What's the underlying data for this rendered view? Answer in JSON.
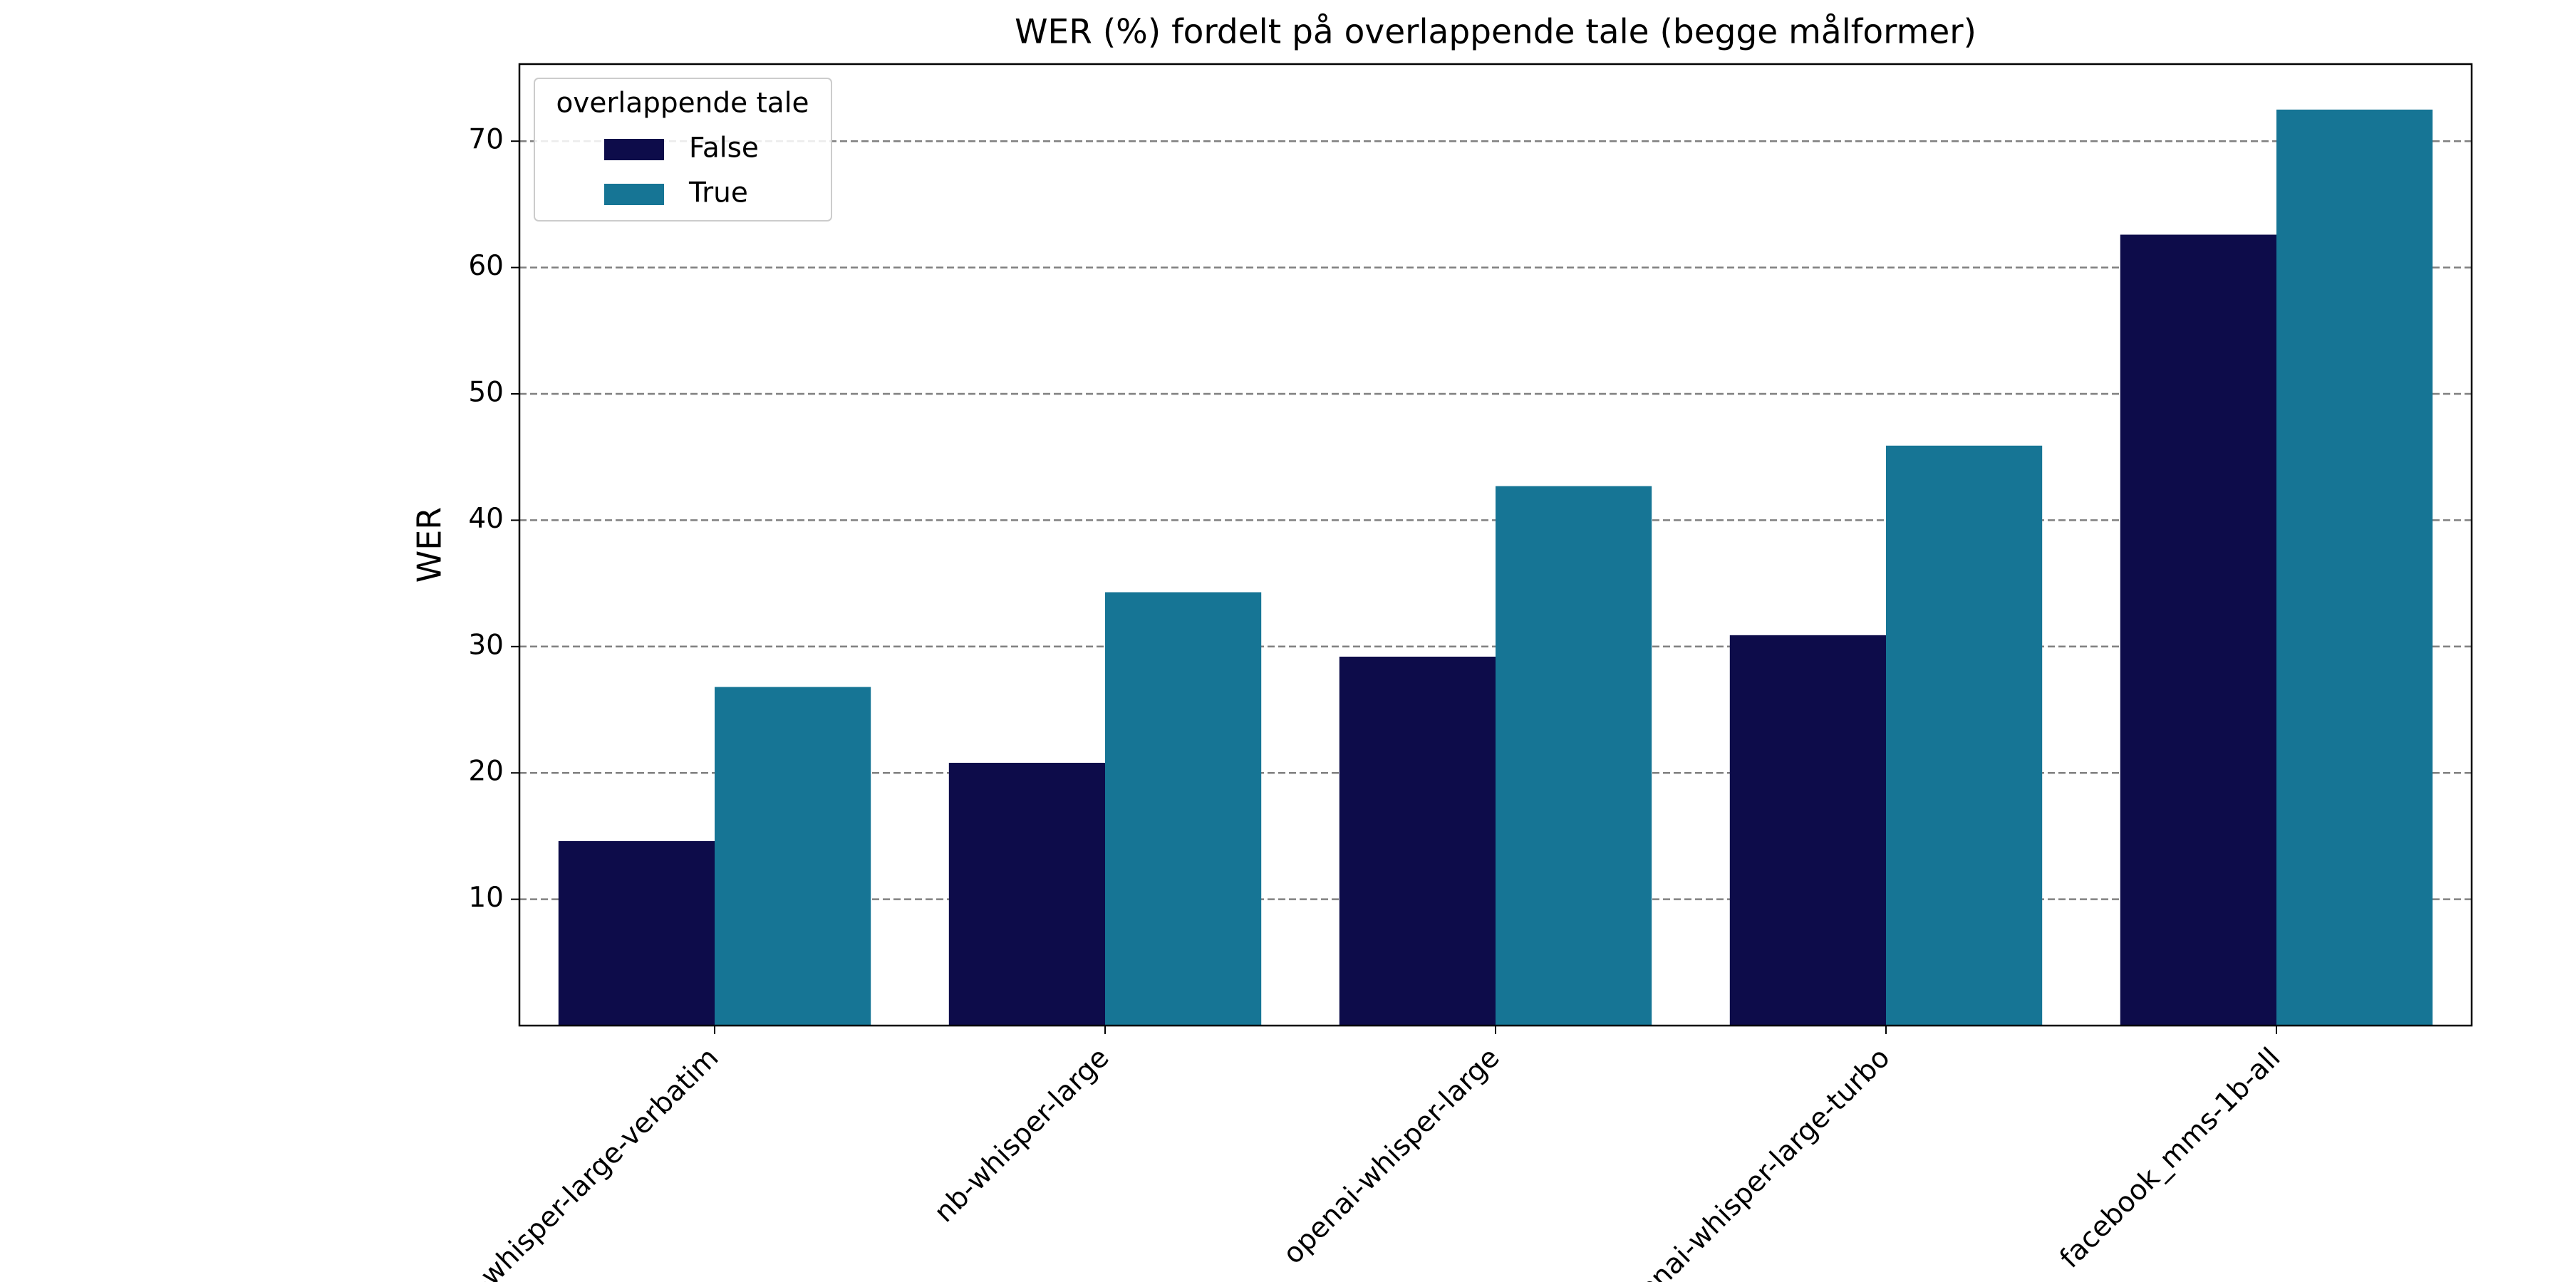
{
  "chart_data": {
    "type": "bar",
    "title": "WER (%) fordelt på overlappende tale (begge målformer)",
    "y_label": "WER",
    "categories": [
      "nb-whisper-large-verbatim",
      "nb-whisper-large",
      "openai-whisper-large",
      "openai-whisper-large-turbo",
      "facebook_mms-1b-all"
    ],
    "series": [
      {
        "name": "False",
        "color": "#0d0c4a",
        "values": [
          14.6,
          20.8,
          29.2,
          30.9,
          62.6
        ]
      },
      {
        "name": "True",
        "color": "#167595",
        "values": [
          26.8,
          34.3,
          42.7,
          45.9,
          72.5
        ]
      }
    ],
    "legend_title": "overlappende tale",
    "legend": "upper left",
    "ylim": [
      0,
      76.1
    ],
    "yticks": [
      10,
      20,
      30,
      40,
      50,
      60,
      70
    ],
    "grid": true
  }
}
